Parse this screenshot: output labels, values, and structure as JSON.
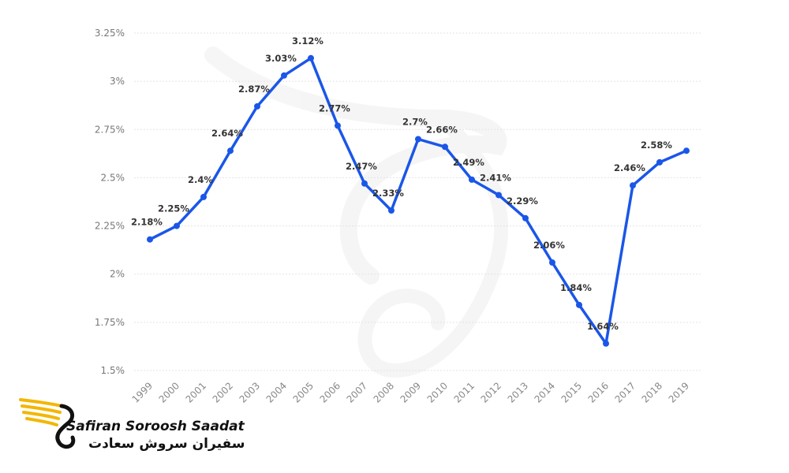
{
  "chart_data": {
    "type": "line",
    "title": "",
    "xlabel": "",
    "ylabel": "",
    "x": [
      "1999",
      "2000",
      "2001",
      "2002",
      "2003",
      "2004",
      "2005",
      "2006",
      "2007",
      "2008",
      "2009",
      "2010",
      "2011",
      "2012",
      "2013",
      "2014",
      "2015",
      "2016",
      "2017",
      "2018",
      "2019"
    ],
    "values": [
      2.18,
      2.25,
      2.4,
      2.64,
      2.87,
      3.03,
      3.12,
      2.77,
      2.47,
      2.33,
      2.7,
      2.66,
      2.49,
      2.41,
      2.29,
      2.06,
      1.84,
      1.64,
      2.46,
      2.58,
      2.64
    ],
    "data_labels": [
      "2.18%",
      "2.25%",
      "2.4%",
      "2.64%",
      "2.87%",
      "3.03%",
      "3.12%",
      "2.77%",
      "2.47%",
      "2.33%",
      "2.7%",
      "2.66%",
      "2.49%",
      "2.41%",
      "2.29%",
      "2.06%",
      "1.84%",
      "1.64%",
      "2.46%",
      "2.58%",
      ""
    ],
    "ylim": [
      1.5,
      3.25
    ],
    "yticks": [
      1.5,
      1.75,
      2,
      2.25,
      2.5,
      2.75,
      3,
      3.25
    ],
    "ytick_labels": [
      "1.5%",
      "1.75%",
      "2%",
      "2.25%",
      "2.5%",
      "2.75%",
      "3%",
      "3.25%"
    ],
    "grid": true,
    "line_color": "#1a56e8"
  },
  "watermark": {
    "name_latin": "Safiran Soroosh Saadat",
    "name_persian": "سفیران سروش سعادت",
    "icon": "swan-wing-logo-icon",
    "accent": "#f2b705"
  }
}
